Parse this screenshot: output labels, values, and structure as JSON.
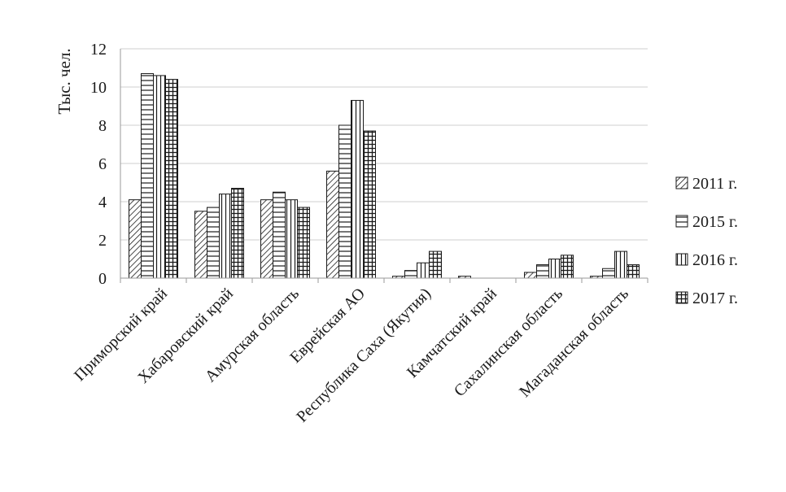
{
  "chart_data": {
    "type": "bar",
    "ylabel": "Тыс. чел.",
    "ylim": [
      0,
      12
    ],
    "yticks": [
      "0",
      "2",
      "4",
      "6",
      "8",
      "10",
      "12"
    ],
    "grid": true,
    "legend_position": "right",
    "categories": [
      "Приморский край",
      "Хабаровский край",
      "Амурская область",
      "Еврейская АО",
      "Республика Саха (Якутия)",
      "Камчатский край",
      "Сахалинская область",
      "Магаданская область"
    ],
    "series": [
      {
        "name": "2011 г.",
        "pattern": "diagonal-hatch",
        "values": [
          4.1,
          3.5,
          4.1,
          5.6,
          0.1,
          0.1,
          0.3,
          0.1
        ]
      },
      {
        "name": "2015 г.",
        "pattern": "horizontal-lines",
        "values": [
          10.7,
          3.7,
          4.5,
          8.0,
          0.4,
          0.0,
          0.7,
          0.5
        ]
      },
      {
        "name": "2016 г.",
        "pattern": "vertical-lines",
        "values": [
          10.6,
          4.4,
          4.1,
          9.3,
          0.8,
          0.0,
          1.0,
          1.4
        ]
      },
      {
        "name": "2017 г.",
        "pattern": "grid",
        "values": [
          10.4,
          4.7,
          3.7,
          7.7,
          1.4,
          0.0,
          1.2,
          0.7
        ]
      }
    ]
  }
}
